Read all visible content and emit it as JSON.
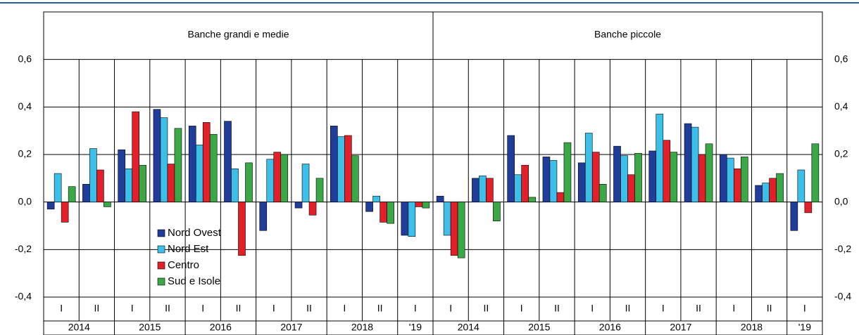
{
  "chart_data": {
    "type": "bar",
    "panels": [
      {
        "title": "Banche grandi e medie"
      },
      {
        "title": "Banche piccole"
      }
    ],
    "categories": [
      "I",
      "II",
      "I",
      "II",
      "I",
      "II",
      "I",
      "II",
      "I",
      "II",
      "I",
      "I",
      "II",
      "I",
      "II",
      "I",
      "II",
      "I",
      "II",
      "I",
      "II",
      "I"
    ],
    "group_labels": [
      "2014",
      null,
      "2015",
      null,
      "2016",
      null,
      "2017",
      null,
      "2018",
      null,
      "'19",
      "2014",
      null,
      "2015",
      null,
      "2016",
      null,
      "2017",
      null,
      "2018",
      null,
      "'19"
    ],
    "series": [
      {
        "name": "Nord Ovest",
        "color": "#1f3d99",
        "values": [
          -0.03,
          0.075,
          0.22,
          0.39,
          0.32,
          0.34,
          -0.12,
          -0.025,
          0.32,
          -0.04,
          -0.14,
          0.025,
          0.1,
          0.28,
          0.19,
          0.165,
          0.235,
          0.215,
          0.33,
          0.2,
          0.07,
          -0.12
        ]
      },
      {
        "name": "Nord Est",
        "color": "#3cbfe8",
        "values": [
          0.12,
          0.225,
          0.14,
          0.355,
          0.24,
          0.14,
          0.18,
          0.16,
          0.275,
          0.025,
          -0.145,
          -0.14,
          0.11,
          0.115,
          0.175,
          0.29,
          0.195,
          0.37,
          0.315,
          0.185,
          0.08,
          0.135
        ]
      },
      {
        "name": "Centro",
        "color": "#e3202a",
        "values": [
          -0.085,
          0.135,
          0.38,
          0.16,
          0.335,
          -0.225,
          0.21,
          -0.055,
          0.28,
          -0.085,
          -0.02,
          -0.225,
          0.1,
          0.155,
          0.04,
          0.21,
          0.115,
          0.26,
          0.2,
          0.14,
          0.1,
          -0.045
        ]
      },
      {
        "name": "Sud e Isole",
        "color": "#3aa846",
        "values": [
          0.065,
          -0.02,
          0.155,
          0.31,
          0.285,
          0.165,
          0.2,
          0.1,
          0.195,
          -0.09,
          -0.025,
          -0.235,
          -0.08,
          0.02,
          0.25,
          0.075,
          0.205,
          0.21,
          0.245,
          0.19,
          0.12,
          0.245
        ]
      }
    ],
    "ylim": [
      -0.4,
      0.8
    ],
    "yticks": [
      {
        "value": -0.4,
        "label": "-0,4"
      },
      {
        "value": -0.2,
        "label": "-0,2"
      },
      {
        "value": 0,
        "label": "0,0"
      },
      {
        "value": 0.2,
        "label": "0,2"
      },
      {
        "value": 0.4,
        "label": "0,4"
      },
      {
        "value": 0.6,
        "label": "0,6"
      }
    ],
    "grid": true
  }
}
